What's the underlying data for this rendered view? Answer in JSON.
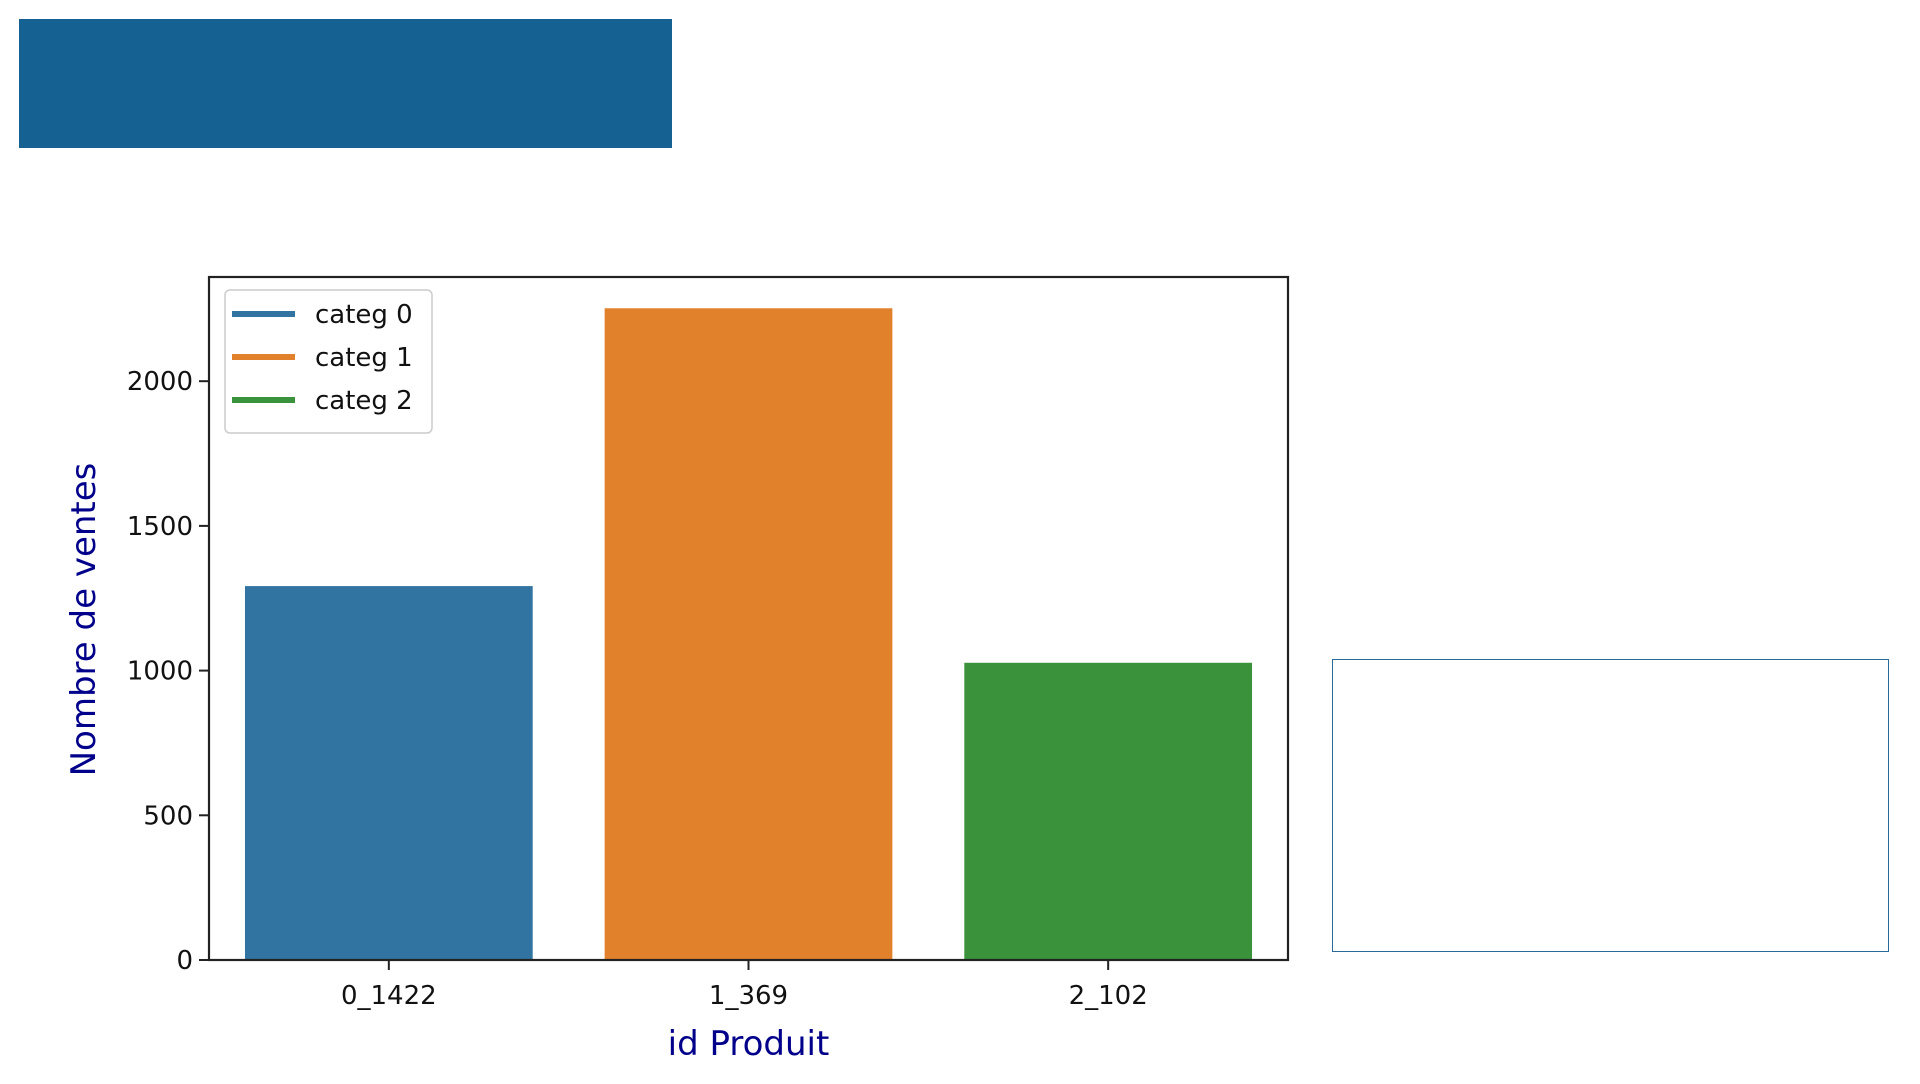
{
  "colors": {
    "title_band": "#156292",
    "side_box_border": "#2a6a98",
    "axis_label": "#00008b",
    "series": [
      "#3274a1",
      "#e1812c",
      "#3a923a"
    ]
  },
  "chart_data": {
    "type": "bar",
    "categories": [
      "0_1422",
      "1_369",
      "2_102"
    ],
    "values": [
      1292,
      2252,
      1027
    ],
    "series": [
      {
        "name": "categ 0",
        "category": "0_1422",
        "value": 1292
      },
      {
        "name": "categ 1",
        "category": "1_369",
        "value": 2252
      },
      {
        "name": "categ 2",
        "category": "2_102",
        "value": 1027
      }
    ],
    "title": "",
    "xlabel": "id Produit",
    "ylabel": "Nombre de ventes",
    "ylim": [
      0,
      2360
    ],
    "yticks": [
      0,
      500,
      1000,
      1500,
      2000
    ],
    "grid": false,
    "legend_position": "top-left"
  }
}
